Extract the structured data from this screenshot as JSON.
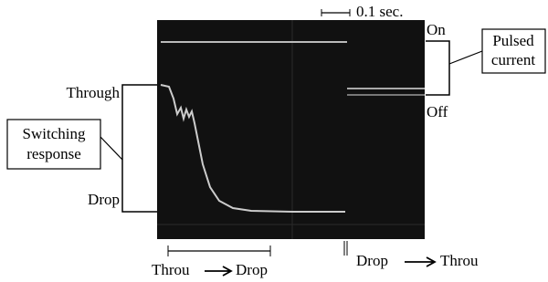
{
  "scale_label": "0.1 sec.",
  "right_labels": {
    "on": "On",
    "off": "Off",
    "pulsed_current": [
      "Pulsed",
      "current"
    ]
  },
  "left_labels": {
    "through": "Through",
    "drop": "Drop",
    "switching_response": [
      "Switching",
      "response"
    ]
  },
  "bottom_labels": {
    "left": {
      "from": "Throu",
      "to": "Drop"
    },
    "right": {
      "from": "Drop",
      "to": "Throu"
    }
  }
}
